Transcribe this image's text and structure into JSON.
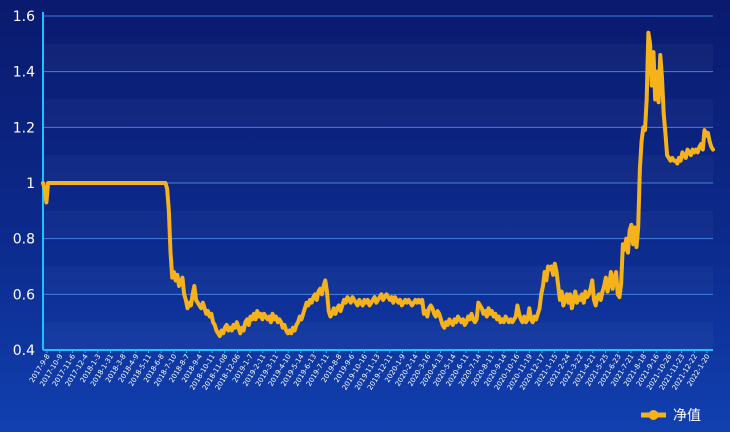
{
  "chart_data": {
    "type": "line",
    "title": "",
    "xlabel": "",
    "ylabel": "",
    "ylim": [
      0.4,
      1.6
    ],
    "yticks": [
      "0.4",
      "0.6",
      "0.8",
      "1",
      "1.2",
      "1.4",
      "1.6"
    ],
    "grid": true,
    "legend_position": "bottom-right",
    "colors": {
      "line": "#f5b21b",
      "axis": "#19c3ff",
      "grid": "#3f7fe0"
    },
    "x_tick_labels": [
      "2017-9-8",
      "2017-10-9",
      "2017-11-6",
      "2017-12-4",
      "2018-1-3",
      "2018-1-31",
      "2018-3-8",
      "2018-4-9",
      "2018-5-11",
      "2018-6-8",
      "2018-7-10",
      "2018-8-7",
      "2018-9-4",
      "2018-10-11",
      "2018-11-08",
      "2018-12-06",
      "2019-1-7",
      "2019-2-11",
      "2019-3-11",
      "2019-4-10",
      "2019-5-14",
      "2019-6-13",
      "2019-7-11",
      "2019-8-8",
      "2019-9-6",
      "2019-10-16",
      "2019-11-13",
      "2019-12-11",
      "2020-1-9",
      "2020-2-14",
      "2020-3-16",
      "2020-4-13",
      "2020-5-14",
      "2020-6-11",
      "2020-7-14",
      "2020-8-11",
      "2020-9-14",
      "2020-10-16",
      "2020-11-19",
      "2020-12-17",
      "2021-1-15",
      "2021-2-24",
      "2021-3-22",
      "2021-4-21",
      "2021-5-25",
      "2021-6-23",
      "2021-7-21",
      "2021-8-18",
      "2021-9-16",
      "2021-10-26",
      "2021-11-23",
      "2021-12-22",
      "2022-1-20"
    ],
    "series": [
      {
        "name": "净值",
        "values": [
          1.0,
          0.98,
          0.93,
          1.0,
          1.0,
          1.0,
          1.0,
          1.0,
          1.0,
          1.0,
          1.0,
          1.0,
          1.0,
          1.0,
          1.0,
          1.0,
          1.0,
          1.0,
          1.0,
          1.0,
          1.0,
          1.0,
          1.0,
          1.0,
          1.0,
          1.0,
          1.0,
          1.0,
          1.0,
          1.0,
          1.0,
          1.0,
          1.0,
          1.0,
          1.0,
          1.0,
          1.0,
          1.0,
          1.0,
          1.0,
          1.0,
          1.0,
          1.0,
          1.0,
          1.0,
          1.0,
          1.0,
          1.0,
          1.0,
          1.0,
          1.0,
          1.0,
          1.0,
          1.0,
          1.0,
          1.0,
          1.0,
          1.0,
          1.0,
          1.0,
          1.0,
          1.0,
          1.0,
          1.0,
          1.0,
          1.0,
          1.0,
          1.0,
          1.0,
          1.0,
          1.0,
          1.0,
          1.0,
          0.98,
          0.9,
          0.75,
          0.66,
          0.68,
          0.65,
          0.67,
          0.63,
          0.64,
          0.66,
          0.6,
          0.58,
          0.55,
          0.57,
          0.56,
          0.6,
          0.63,
          0.58,
          0.57,
          0.56,
          0.55,
          0.57,
          0.55,
          0.53,
          0.54,
          0.52,
          0.53,
          0.5,
          0.49,
          0.47,
          0.46,
          0.45,
          0.47,
          0.46,
          0.48,
          0.49,
          0.47,
          0.48,
          0.47,
          0.49,
          0.48,
          0.5,
          0.48,
          0.46,
          0.48,
          0.47,
          0.5,
          0.51,
          0.49,
          0.52,
          0.51,
          0.53,
          0.51,
          0.54,
          0.52,
          0.53,
          0.51,
          0.53,
          0.52,
          0.51,
          0.52,
          0.5,
          0.53,
          0.51,
          0.52,
          0.5,
          0.51,
          0.5,
          0.48,
          0.49,
          0.47,
          0.46,
          0.47,
          0.46,
          0.48,
          0.47,
          0.49,
          0.5,
          0.52,
          0.51,
          0.53,
          0.55,
          0.57,
          0.56,
          0.58,
          0.57,
          0.59,
          0.6,
          0.58,
          0.61,
          0.62,
          0.6,
          0.63,
          0.65,
          0.61,
          0.54,
          0.52,
          0.53,
          0.55,
          0.53,
          0.55,
          0.56,
          0.54,
          0.56,
          0.58,
          0.57,
          0.59,
          0.58,
          0.57,
          0.59,
          0.58,
          0.57,
          0.56,
          0.58,
          0.57,
          0.56,
          0.58,
          0.57,
          0.58,
          0.56,
          0.57,
          0.58,
          0.59,
          0.57,
          0.58,
          0.59,
          0.6,
          0.58,
          0.59,
          0.6,
          0.59,
          0.58,
          0.59,
          0.57,
          0.59,
          0.58,
          0.57,
          0.58,
          0.56,
          0.57,
          0.58,
          0.57,
          0.58,
          0.57,
          0.56,
          0.57,
          0.58,
          0.57,
          0.58,
          0.57,
          0.58,
          0.53,
          0.54,
          0.52,
          0.55,
          0.56,
          0.55,
          0.53,
          0.52,
          0.54,
          0.53,
          0.51,
          0.49,
          0.48,
          0.5,
          0.49,
          0.51,
          0.5,
          0.49,
          0.51,
          0.5,
          0.52,
          0.51,
          0.5,
          0.51,
          0.49,
          0.5,
          0.52,
          0.51,
          0.53,
          0.51,
          0.5,
          0.51,
          0.57,
          0.56,
          0.55,
          0.53,
          0.54,
          0.52,
          0.55,
          0.53,
          0.54,
          0.52,
          0.53,
          0.51,
          0.52,
          0.5,
          0.51,
          0.5,
          0.52,
          0.51,
          0.5,
          0.51,
          0.5,
          0.51,
          0.52,
          0.56,
          0.53,
          0.51,
          0.5,
          0.52,
          0.5,
          0.51,
          0.55,
          0.51,
          0.5,
          0.52,
          0.51,
          0.53,
          0.55,
          0.6,
          0.63,
          0.68,
          0.65,
          0.7,
          0.69,
          0.7,
          0.67,
          0.71,
          0.68,
          0.63,
          0.58,
          0.61,
          0.56,
          0.58,
          0.6,
          0.57,
          0.6,
          0.55,
          0.58,
          0.61,
          0.57,
          0.59,
          0.58,
          0.6,
          0.57,
          0.61,
          0.59,
          0.6,
          0.62,
          0.65,
          0.58,
          0.56,
          0.59,
          0.6,
          0.58,
          0.61,
          0.63,
          0.66,
          0.61,
          0.64,
          0.68,
          0.62,
          0.66,
          0.68,
          0.6,
          0.59,
          0.64,
          0.78,
          0.76,
          0.8,
          0.75,
          0.83,
          0.85,
          0.78,
          0.84,
          0.77,
          0.84,
          1.05,
          1.15,
          1.2,
          1.19,
          1.3,
          1.54,
          1.5,
          1.35,
          1.47,
          1.3,
          1.4,
          1.29,
          1.46,
          1.38,
          1.25,
          1.18,
          1.1,
          1.09,
          1.08,
          1.09,
          1.08,
          1.08,
          1.07,
          1.09,
          1.08,
          1.11,
          1.1,
          1.09,
          1.12,
          1.11,
          1.1,
          1.12,
          1.11,
          1.12,
          1.11,
          1.13,
          1.14,
          1.12,
          1.19,
          1.17,
          1.18,
          1.15,
          1.13,
          1.12
        ]
      }
    ]
  }
}
